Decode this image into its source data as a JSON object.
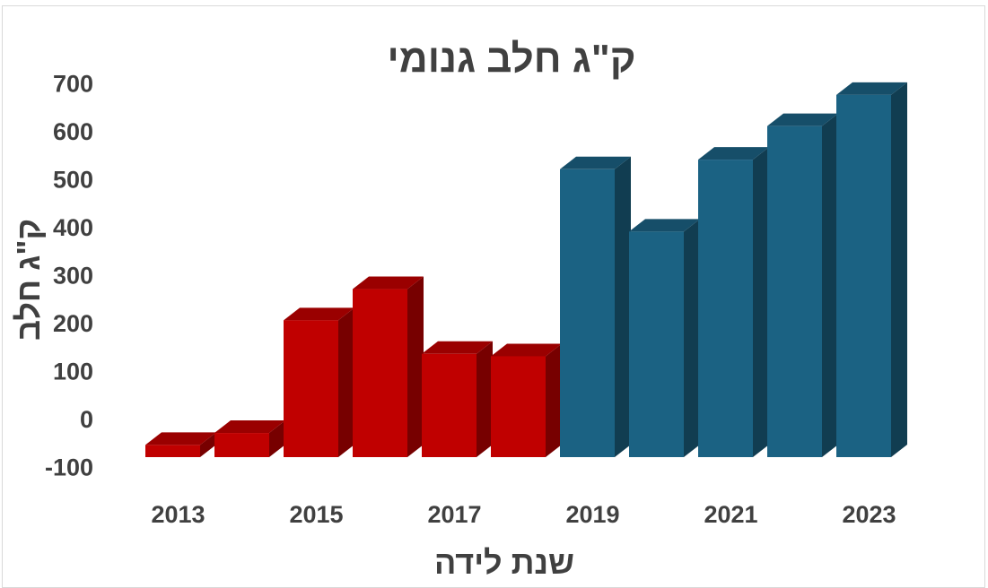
{
  "chart_data": {
    "type": "bar",
    "title": "ק\"ג חלב גנומי",
    "xlabel": "שנת לידה",
    "ylabel": "ק\"ג חלב",
    "categories": [
      "2013",
      "2014",
      "2015",
      "2016",
      "2017",
      "2018",
      "2019",
      "2020",
      "2021",
      "2022",
      "2023"
    ],
    "x_tick_labels": [
      "2013",
      "2015",
      "2017",
      "2019",
      "2021",
      "2023"
    ],
    "y_ticks": [
      -100,
      0,
      100,
      200,
      300,
      400,
      500,
      600,
      700
    ],
    "ylim": [
      -100,
      700
    ],
    "values": [
      -55,
      -30,
      205,
      270,
      135,
      130,
      520,
      390,
      540,
      610,
      675
    ],
    "bar_colors": [
      "#c00000",
      "#c00000",
      "#c00000",
      "#c00000",
      "#c00000",
      "#c00000",
      "#1b6283",
      "#1b6283",
      "#1b6283",
      "#1b6283",
      "#1b6283"
    ],
    "style": "3d-clustered-column",
    "grid": false,
    "legend": "none"
  }
}
